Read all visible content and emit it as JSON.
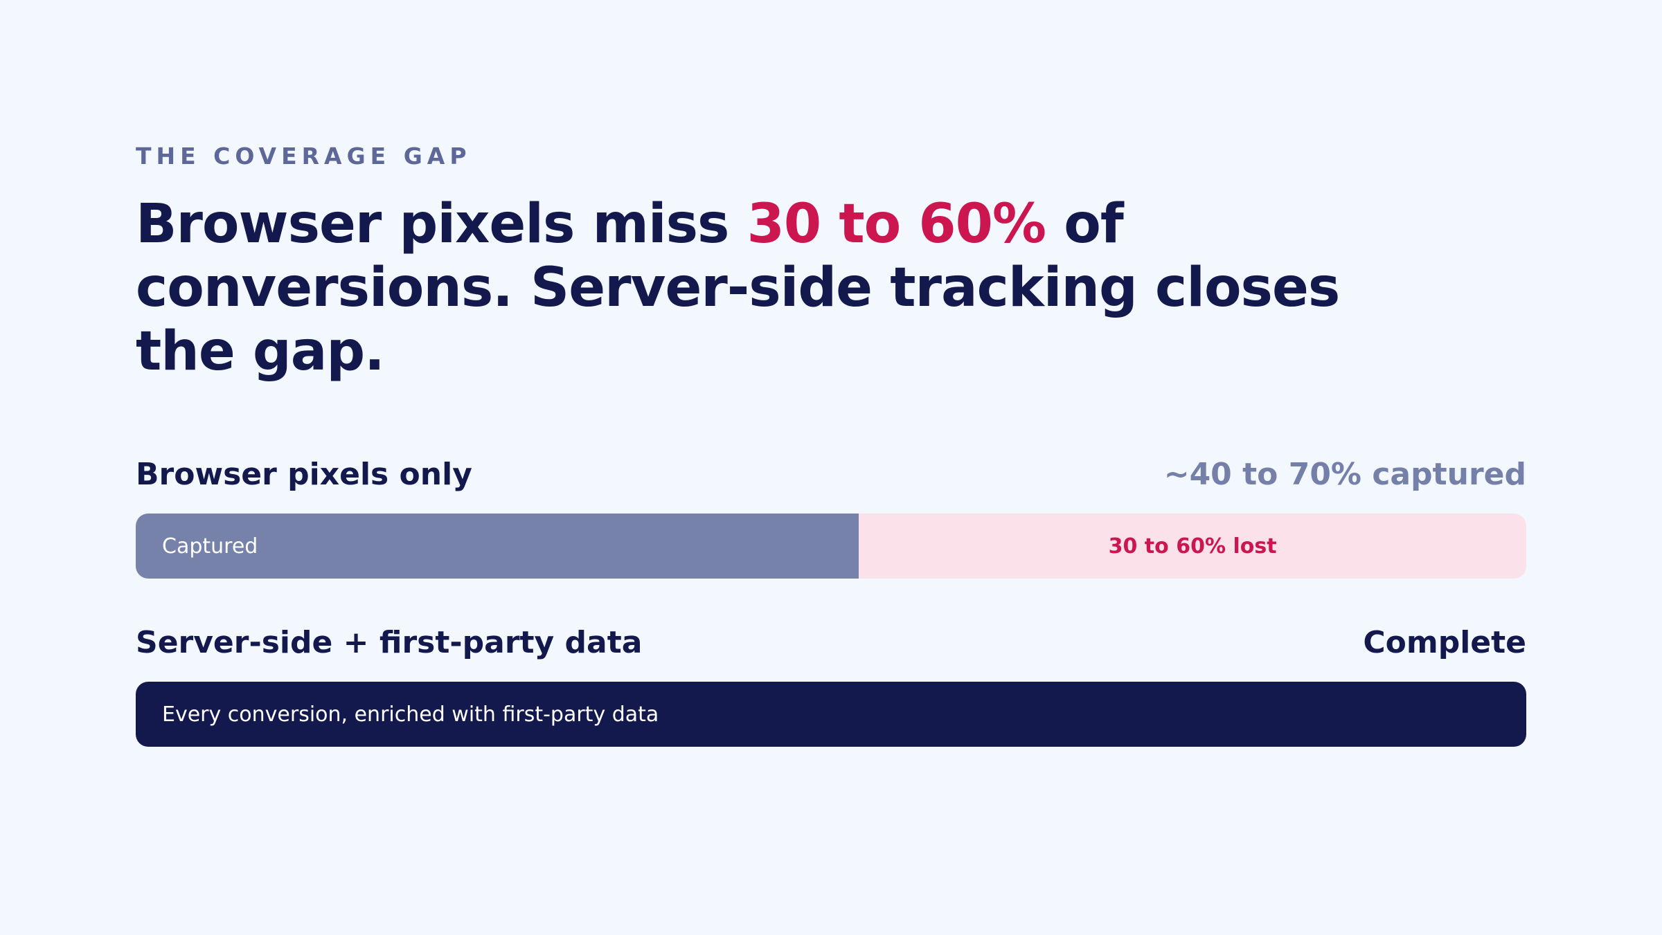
{
  "eyebrow": "THE COVERAGE GAP",
  "headline": {
    "before": "Browser pixels miss ",
    "highlight": "30 to 60%",
    "after": " of conversions. Server-side tracking closes the gap."
  },
  "rows": [
    {
      "label": "Browser pixels only",
      "value": "~40 to 70% captured",
      "captured_fraction": 0.52,
      "captured_label": "Captured",
      "lost_label": "30 to 60% lost"
    },
    {
      "label": "Server-side + first-party data",
      "value": "Complete",
      "captured_fraction": 1.0,
      "bar_label": "Every conversion, enriched with first-party data"
    }
  ],
  "colors": {
    "background": "#f3f7fe",
    "navy": "#14194d",
    "accent": "#cc1650",
    "captured": "#7782aa",
    "lost": "#fbe1ea",
    "muted": "#7580a8"
  }
}
